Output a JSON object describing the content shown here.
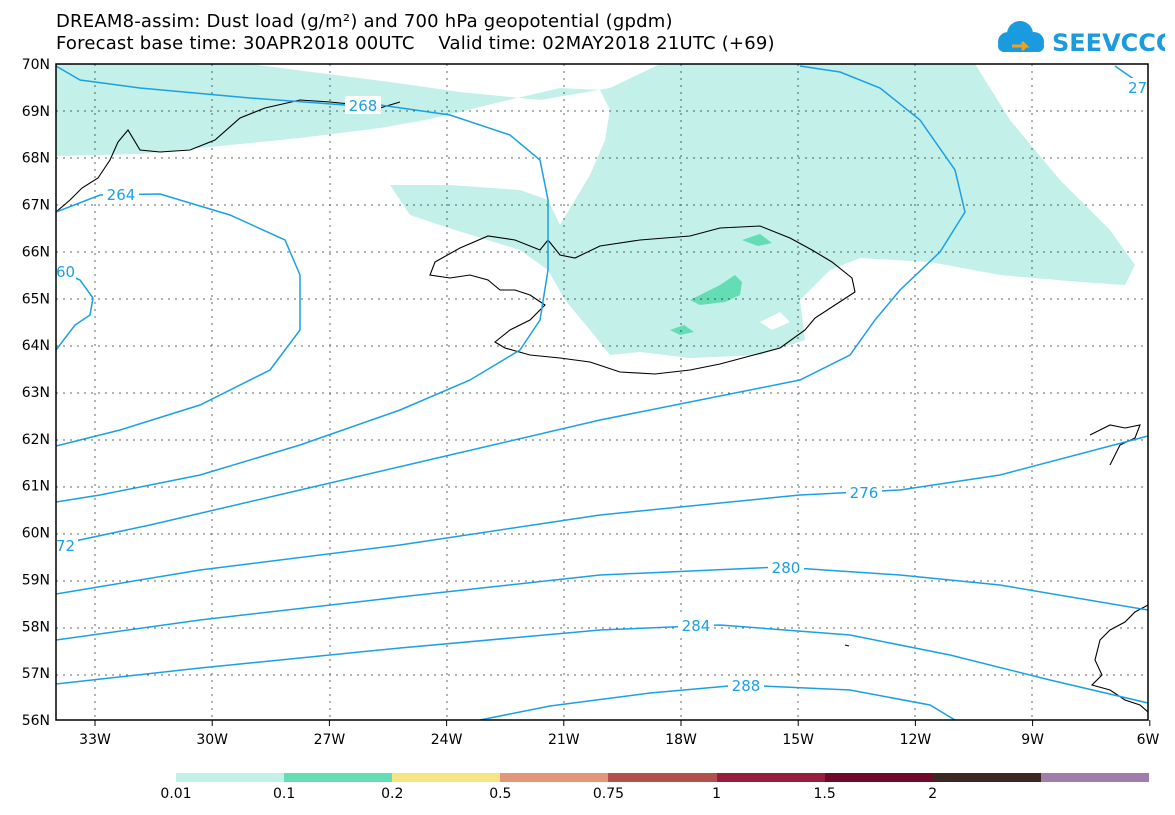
{
  "title": {
    "line1": "DREAM8-assim: Dust load (g/m²) and 700 hPa geopotential (gpdm)",
    "line2": "Forecast base time: 30APR2018 00UTC    Valid time: 02MAY2018 21UTC (+69)"
  },
  "logo": {
    "text": "SEEVCCC",
    "icon": "cloud-icon",
    "color": "#1a9be0"
  },
  "map": {
    "lon_labels": [
      "33W",
      "30W",
      "27W",
      "24W",
      "21W",
      "18W",
      "15W",
      "12W",
      "9W",
      "6W"
    ],
    "lat_labels": [
      "70N",
      "69N",
      "68N",
      "67N",
      "66N",
      "65N",
      "64N",
      "63N",
      "62N",
      "61N",
      "60N",
      "59N",
      "58N",
      "57N",
      "56N"
    ],
    "contour_color": "#1aa0e6",
    "contours": [
      "268",
      "264",
      "60",
      "72",
      "276",
      "280",
      "284",
      "288",
      "27"
    ]
  },
  "colorbar": {
    "colors": [
      "#c3f0e8",
      "#64dcb4",
      "#f5e682",
      "#e69678",
      "#b4504b",
      "#961e3c",
      "#6e0a28",
      "#3c2823",
      "#a07daa"
    ],
    "labels": [
      "0.01",
      "0.1",
      "0.2",
      "0.5",
      "0.75",
      "1",
      "1.5",
      "2"
    ]
  }
}
